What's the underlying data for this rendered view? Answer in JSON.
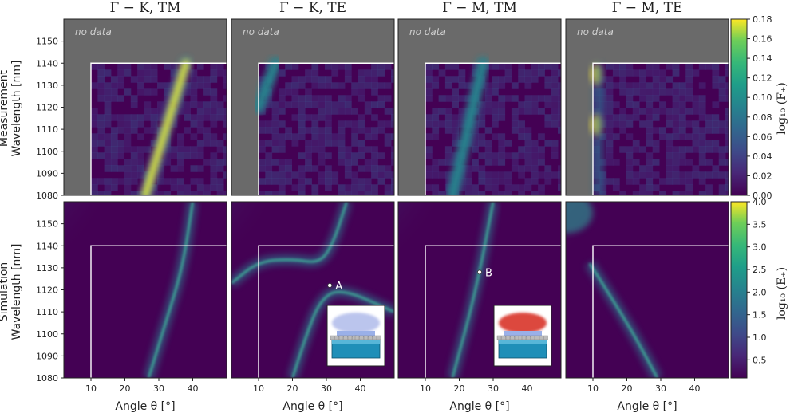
{
  "figure": {
    "row_labels": [
      {
        "line1": "Measurement",
        "line2": "Wavelength [nm]"
      },
      {
        "line1": "Simulation",
        "line2": "Wavelength [nm]"
      }
    ],
    "colorbar_labels": [
      "log₁₀ (F₊)",
      "log₁₀ (E₊)"
    ],
    "no_data_label": "no data"
  },
  "chart_data": [
    {
      "type": "heatmap",
      "title": "Γ − K, TM",
      "row": "Measurement",
      "xlabel": "",
      "ylabel": "Wavelength [nm]",
      "xlim": [
        2,
        50
      ],
      "ylim": [
        1080,
        1160
      ],
      "yticks": [
        1080,
        1090,
        1100,
        1110,
        1120,
        1130,
        1140,
        1150
      ],
      "measured_region": {
        "angle_min": 10,
        "wavelength_max": 1140
      },
      "features": [
        {
          "kind": "resonance_band",
          "points": [
            [
              26,
              1080
            ],
            [
              33,
              1115
            ],
            [
              38,
              1140
            ]
          ],
          "peak_value": 0.17
        }
      ]
    },
    {
      "type": "heatmap",
      "title": "Γ − K, TE",
      "row": "Measurement",
      "xlabel": "",
      "ylabel": "",
      "xlim": [
        2,
        50
      ],
      "ylim": [
        1080,
        1160
      ],
      "measured_region": {
        "angle_min": 10,
        "wavelength_max": 1140
      },
      "features": [
        {
          "kind": "resonance_band",
          "points": [
            [
              15,
              1140
            ],
            [
              10,
              1120
            ]
          ],
          "peak_value": 0.08
        }
      ]
    },
    {
      "type": "heatmap",
      "title": "Γ − M, TM",
      "row": "Measurement",
      "xlabel": "",
      "ylabel": "",
      "xlim": [
        2,
        50
      ],
      "ylim": [
        1080,
        1160
      ],
      "measured_region": {
        "angle_min": 10,
        "wavelength_max": 1140
      },
      "features": [
        {
          "kind": "resonance_band",
          "points": [
            [
              18,
              1080
            ],
            [
              27,
              1140
            ]
          ],
          "peak_value": 0.08
        }
      ]
    },
    {
      "type": "heatmap",
      "title": "Γ − M, TE",
      "row": "Measurement",
      "xlabel": "",
      "ylabel": "",
      "xlim": [
        2,
        50
      ],
      "ylim": [
        1080,
        1160
      ],
      "measured_region": {
        "angle_min": 10,
        "wavelength_max": 1140
      },
      "features": [
        {
          "kind": "hot_spot",
          "points": [
            [
              11,
              1112
            ],
            [
              11,
              1135
            ]
          ],
          "peak_value": 0.18
        }
      ]
    },
    {
      "type": "heatmap",
      "title": "",
      "row": "Simulation",
      "xlabel": "Angle θ [°]",
      "ylabel": "Wavelength [nm]",
      "xlim": [
        2,
        50
      ],
      "ylim": [
        1080,
        1160
      ],
      "xticks": [
        10,
        20,
        30,
        40
      ],
      "measured_region": {
        "angle_min": 10,
        "wavelength_max": 1140
      },
      "features": [
        {
          "kind": "line",
          "points": [
            [
              27,
              1080
            ],
            [
              32,
              1105
            ],
            [
              37,
              1130
            ],
            [
              40,
              1160
            ]
          ]
        }
      ]
    },
    {
      "type": "heatmap",
      "title": "",
      "row": "Simulation",
      "xlabel": "Angle θ [°]",
      "ylabel": "",
      "xlim": [
        2,
        50
      ],
      "ylim": [
        1080,
        1160
      ],
      "xticks": [
        10,
        20,
        30,
        40
      ],
      "measured_region": {
        "angle_min": 10,
        "wavelength_max": 1140
      },
      "features": [
        {
          "kind": "anticrossing_upper",
          "points": [
            [
              2,
              1123
            ],
            [
              10,
              1133
            ],
            [
              20,
              1134
            ],
            [
              28,
              1132
            ],
            [
              32,
              1141
            ],
            [
              36,
              1160
            ]
          ]
        },
        {
          "kind": "anticrossing_lower",
          "points": [
            [
              20,
              1080
            ],
            [
              24,
              1099
            ],
            [
              28,
              1115
            ],
            [
              34,
              1121
            ],
            [
              50,
              1110
            ]
          ]
        }
      ],
      "marker": {
        "label": "A",
        "x": 31,
        "y": 1122
      }
    },
    {
      "type": "heatmap",
      "title": "",
      "row": "Simulation",
      "xlabel": "Angle θ [°]",
      "ylabel": "",
      "xlim": [
        2,
        50
      ],
      "ylim": [
        1080,
        1160
      ],
      "xticks": [
        10,
        20,
        30,
        40
      ],
      "measured_region": {
        "angle_min": 10,
        "wavelength_max": 1140
      },
      "features": [
        {
          "kind": "line",
          "points": [
            [
              18,
              1080
            ],
            [
              25,
              1120
            ],
            [
              30,
              1160
            ]
          ]
        }
      ],
      "marker": {
        "label": "B",
        "x": 26,
        "y": 1128
      }
    },
    {
      "type": "heatmap",
      "title": "",
      "row": "Simulation",
      "xlabel": "Angle θ [°]",
      "ylabel": "",
      "xlim": [
        2,
        50
      ],
      "ylim": [
        1080,
        1160
      ],
      "xticks": [
        10,
        20,
        30,
        40
      ],
      "measured_region": {
        "angle_min": 10,
        "wavelength_max": 1140
      },
      "features": [
        {
          "kind": "line",
          "points": [
            [
              9,
              1132
            ],
            [
              14,
              1120
            ],
            [
              22,
              1100
            ],
            [
              29,
              1080
            ]
          ]
        },
        {
          "kind": "bright_corner",
          "points": [
            [
              2,
              1155
            ],
            [
              8,
              1138
            ]
          ]
        }
      ]
    }
  ],
  "colorbars": [
    {
      "row": "Measurement",
      "min": 0.0,
      "max": 0.18,
      "ticks": [
        "0.00",
        "0.02",
        "0.04",
        "0.06",
        "0.08",
        "0.10",
        "0.12",
        "0.14",
        "0.16",
        "0.18"
      ]
    },
    {
      "row": "Simulation",
      "min": 0.1,
      "max": 4.0,
      "ticks": [
        "0.5",
        "1.0",
        "1.5",
        "2.0",
        "2.5",
        "3.0",
        "3.5",
        "4.0"
      ]
    }
  ],
  "colors": {
    "no_data": "#6a6a6a",
    "viridis_low": "#440154",
    "viridis_mid": "#21918c",
    "viridis_high": "#fde725",
    "region_outline": "#ffffff"
  }
}
